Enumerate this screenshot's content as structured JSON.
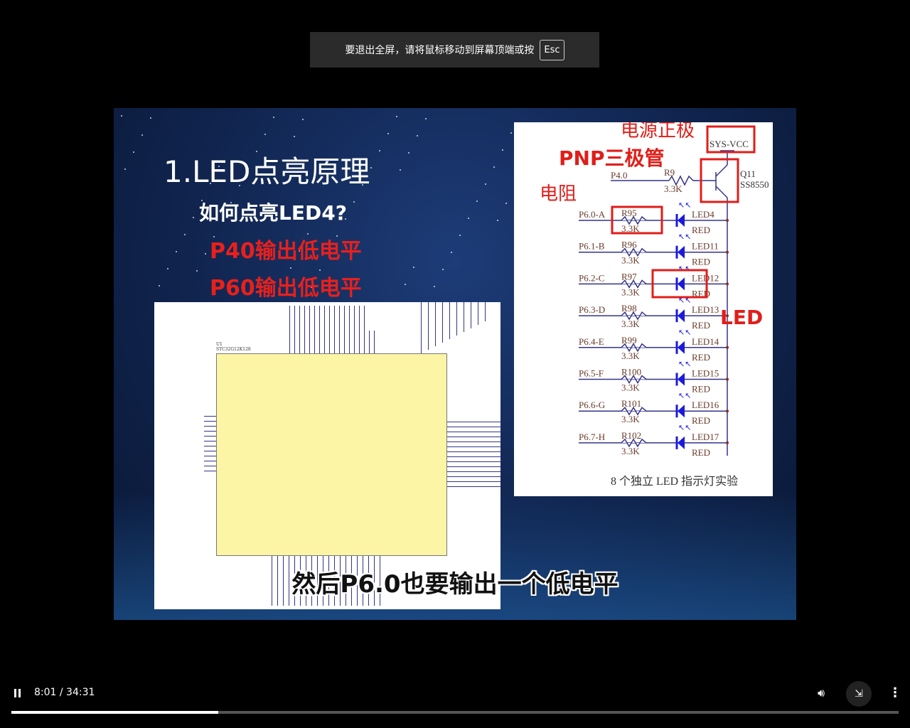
{
  "banner": {
    "text": "要退出全屏，请将鼠标移动到屏幕顶端或按",
    "key": "Esc"
  },
  "slide": {
    "title": "1.LED点亮原理",
    "question": "如何点亮LED4?",
    "step1": "P40输出低电平",
    "step2": "P60输出低电平",
    "chip": {
      "ref": "U1",
      "part": "STC32G12K128"
    },
    "schematic": {
      "annot_power": "电源正极",
      "annot_pnp": "PNP三极管",
      "annot_resistor": "电阻",
      "annot_led": "LED",
      "vcc": "SYS-VCC",
      "base_port": "P4.0",
      "base_res": "R9",
      "base_res_val": "3.3K",
      "transistor": "Q11",
      "transistor_part": "SS8550",
      "rows": [
        {
          "port": "P6.0-A",
          "res": "R95",
          "val": "3.3K",
          "led": "LED4",
          "color": "RED"
        },
        {
          "port": "P6.1-B",
          "res": "R96",
          "val": "3.3K",
          "led": "LED11",
          "color": "RED"
        },
        {
          "port": "P6.2-C",
          "res": "R97",
          "val": "3.3K",
          "led": "LED12",
          "color": "RED"
        },
        {
          "port": "P6.3-D",
          "res": "R98",
          "val": "3.3K",
          "led": "LED13",
          "color": "RED"
        },
        {
          "port": "P6.4-E",
          "res": "R99",
          "val": "3.3K",
          "led": "LED14",
          "color": "RED"
        },
        {
          "port": "P6.5-F",
          "res": "R100",
          "val": "3.3K",
          "led": "LED15",
          "color": "RED"
        },
        {
          "port": "P6.6-G",
          "res": "R101",
          "val": "3.3K",
          "led": "LED16",
          "color": "RED"
        },
        {
          "port": "P6.7-H",
          "res": "R102",
          "val": "3.3K",
          "led": "LED17",
          "color": "RED"
        }
      ],
      "caption": "8 个独立 LED 指示灯实验"
    },
    "subtitle": "然后P6.0也要输出一个低电平"
  },
  "player": {
    "time": "8:01 / 34:31",
    "progress_percent": 23.3,
    "icons": {
      "play": "pause-icon",
      "volume": "volume-icon",
      "fullscreen": "exit-fullscreen-icon",
      "more": "more-vert-icon"
    }
  },
  "colors": {
    "annot": "#e8201c",
    "wire": "#33348a",
    "led": "#1a1adc",
    "chip": "#fdf5a6"
  }
}
